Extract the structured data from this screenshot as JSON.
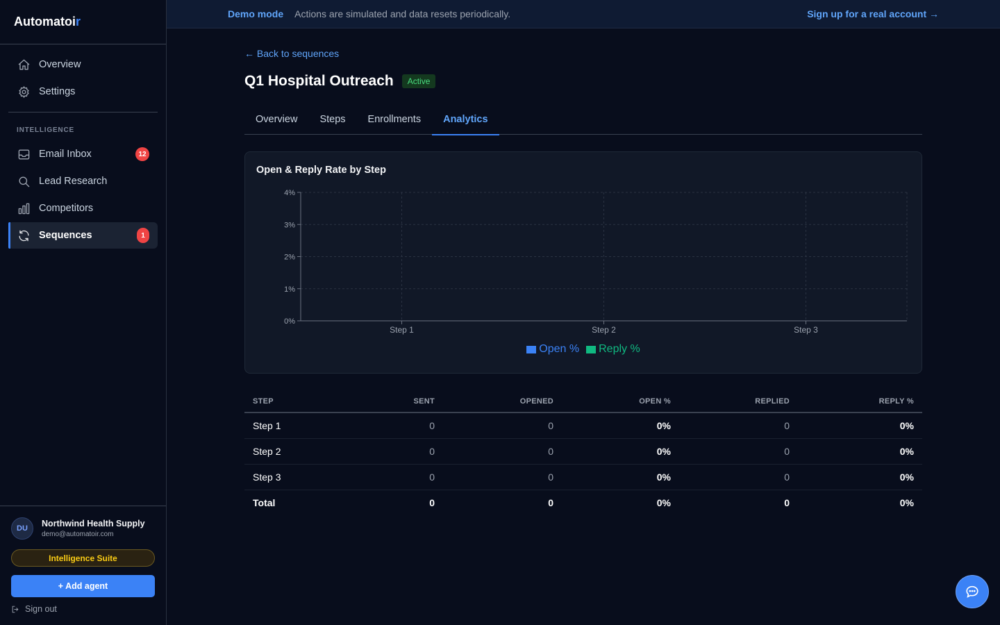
{
  "brand": {
    "name": "Automatoi",
    "accent": "r"
  },
  "nav_top": [
    {
      "label": "Overview",
      "icon": "home-icon"
    },
    {
      "label": "Settings",
      "icon": "gear-icon"
    }
  ],
  "section_label": "INTELLIGENCE",
  "nav_intel": [
    {
      "label": "Email Inbox",
      "icon": "inbox-icon",
      "badge": "12"
    },
    {
      "label": "Lead Research",
      "icon": "search-icon"
    },
    {
      "label": "Competitors",
      "icon": "bar-chart-icon"
    },
    {
      "label": "Sequences",
      "icon": "refresh-icon",
      "badge": "1",
      "active": true
    }
  ],
  "user": {
    "initials": "DU",
    "name": "Northwind Health Supply",
    "email": "demo@automatoir.com"
  },
  "suite_label": "Intelligence Suite",
  "add_agent_label": "+ Add agent",
  "signout_label": "Sign out",
  "banner": {
    "mode": "Demo mode",
    "message": "Actions are simulated and data resets periodically.",
    "signup": "Sign up for a real account →"
  },
  "back_link": "← Back to sequences",
  "sequence": {
    "title": "Q1 Hospital Outreach",
    "status": "Active"
  },
  "tabs": [
    "Overview",
    "Steps",
    "Enrollments",
    "Analytics"
  ],
  "active_tab": "Analytics",
  "chart_data": {
    "type": "bar",
    "title": "Open & Reply Rate by Step",
    "categories": [
      "Step 1",
      "Step 2",
      "Step 3"
    ],
    "series": [
      {
        "name": "Open %",
        "values": [
          0,
          0,
          0
        ],
        "color": "#3b82f6"
      },
      {
        "name": "Reply %",
        "values": [
          0,
          0,
          0
        ],
        "color": "#10b981"
      }
    ],
    "ylim": [
      0,
      4
    ],
    "yticks": [
      "0%",
      "1%",
      "2%",
      "3%",
      "4%"
    ],
    "grid": true,
    "legend": "bottom-center"
  },
  "table": {
    "headers": [
      "STEP",
      "SENT",
      "OPENED",
      "OPEN %",
      "REPLIED",
      "REPLY %"
    ],
    "rows": [
      [
        "Step 1",
        "0",
        "0",
        "0%",
        "0",
        "0%"
      ],
      [
        "Step 2",
        "0",
        "0",
        "0%",
        "0",
        "0%"
      ],
      [
        "Step 3",
        "0",
        "0",
        "0%",
        "0",
        "0%"
      ]
    ],
    "total": [
      "Total",
      "0",
      "0",
      "0%",
      "0",
      "0%"
    ]
  }
}
